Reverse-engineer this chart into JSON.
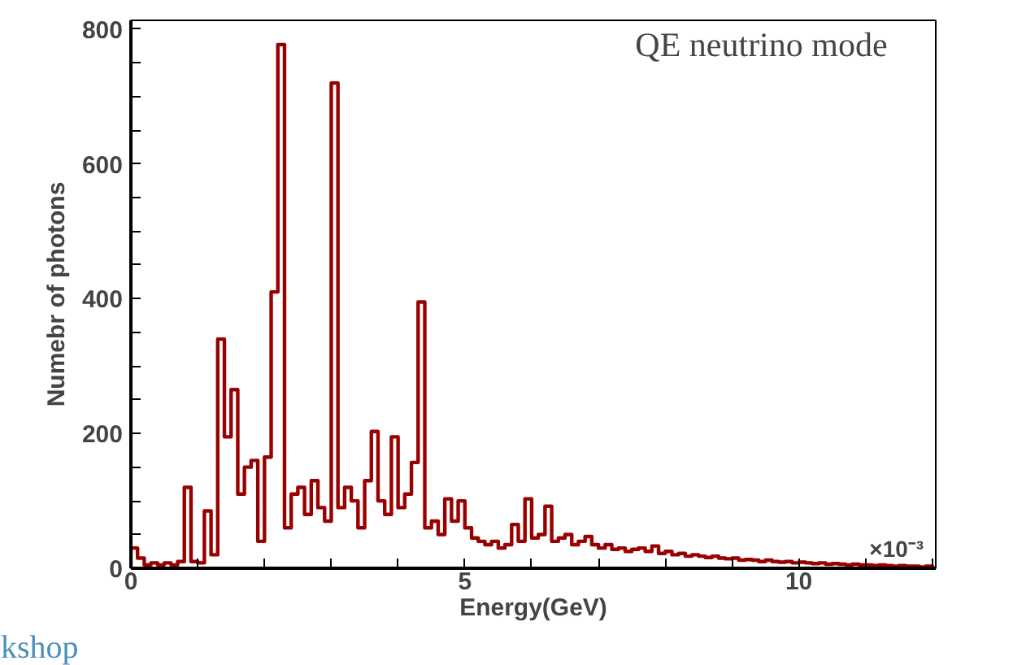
{
  "chart_data": {
    "type": "histogram",
    "xlabel": "Energy(GeV)",
    "ylabel": "Numebr of photons",
    "annotations": [
      "QE neutrino mode",
      "×10⁻³",
      "kshop"
    ],
    "xlim": [
      0,
      12.05
    ],
    "ylim": [
      0,
      813
    ],
    "xticks": [
      0,
      {
        "value": 1,
        "label": null
      },
      {
        "value": 2,
        "label": null
      },
      {
        "value": 3,
        "label": null
      },
      {
        "value": 4,
        "label": null
      },
      5,
      {
        "value": 6,
        "label": null
      },
      {
        "value": 7,
        "label": null
      },
      {
        "value": 8,
        "label": null
      },
      {
        "value": 9,
        "label": null
      },
      10,
      {
        "value": 11,
        "label": null
      },
      {
        "value": 12,
        "label": null
      }
    ],
    "yticks": [
      0,
      {
        "value": 50,
        "label": null
      },
      {
        "value": 100,
        "label": null
      },
      {
        "value": 150,
        "label": null
      },
      200,
      {
        "value": 250,
        "label": null
      },
      {
        "value": 300,
        "label": null
      },
      {
        "value": 350,
        "label": null
      },
      400,
      {
        "value": 450,
        "label": null
      },
      {
        "value": 500,
        "label": null
      },
      {
        "value": 550,
        "label": null
      },
      600,
      {
        "value": 650,
        "label": null
      },
      {
        "value": 700,
        "label": null
      },
      {
        "value": 750,
        "label": null
      },
      800
    ],
    "bins": [
      0,
      0.1,
      0.2,
      0.3,
      0.4,
      0.5,
      0.6,
      0.7,
      0.8,
      0.9,
      1,
      1.1,
      1.2,
      1.3,
      1.4,
      1.5,
      1.6,
      1.7,
      1.8,
      1.9,
      2,
      2.1,
      2.2,
      2.3,
      2.4,
      2.5,
      2.6,
      2.7,
      2.8,
      2.9,
      3,
      3.1,
      3.2,
      3.3,
      3.4,
      3.5,
      3.6,
      3.7,
      3.8,
      3.9,
      4,
      4.1,
      4.2,
      4.3,
      4.4,
      4.5,
      4.6,
      4.7,
      4.8,
      4.9,
      5,
      5.1,
      5.2,
      5.3,
      5.4,
      5.5,
      5.6,
      5.7,
      5.8,
      5.9,
      6,
      6.1,
      6.2,
      6.3,
      6.4,
      6.5,
      6.6,
      6.7,
      6.8,
      6.9,
      7,
      7.1,
      7.2,
      7.3,
      7.4,
      7.5,
      7.6,
      7.7,
      7.8,
      7.9,
      8,
      8.1,
      8.2,
      8.3,
      8.4,
      8.5,
      8.6,
      8.7,
      8.8,
      8.9,
      9,
      9.1,
      9.2,
      9.3,
      9.4,
      9.5,
      9.6,
      9.7,
      9.8,
      9.9,
      10,
      10.1,
      10.2,
      10.3,
      10.4,
      10.5,
      10.6,
      10.7,
      10.8,
      10.9,
      11,
      11.1,
      11.2,
      11.3,
      11.4,
      11.5,
      11.6,
      11.7,
      11.8,
      11.9,
      12
    ],
    "series": [
      {
        "color": "#990000",
        "values": [
          30,
          15,
          5,
          8,
          5,
          8,
          5,
          10,
          120,
          10,
          8,
          85,
          20,
          340,
          195,
          265,
          110,
          150,
          160,
          40,
          165,
          410,
          777,
          60,
          110,
          120,
          80,
          130,
          90,
          70,
          720,
          90,
          120,
          100,
          60,
          130,
          203,
          100,
          80,
          195,
          90,
          110,
          157,
          395,
          60,
          70,
          50,
          103,
          70,
          100,
          60,
          45,
          40,
          35,
          40,
          30,
          35,
          65,
          40,
          103,
          45,
          50,
          92,
          40,
          45,
          50,
          35,
          40,
          47,
          35,
          30,
          35,
          28,
          30,
          25,
          28,
          30,
          25,
          33,
          22,
          25,
          20,
          22,
          18,
          20,
          18,
          16,
          18,
          15,
          14,
          15,
          12,
          13,
          12,
          10,
          12,
          10,
          9,
          10,
          8,
          9,
          8,
          7,
          8,
          6,
          7,
          6,
          5,
          6,
          5,
          5,
          4,
          5,
          4,
          3,
          4,
          3,
          3,
          2,
          3
        ]
      }
    ]
  }
}
